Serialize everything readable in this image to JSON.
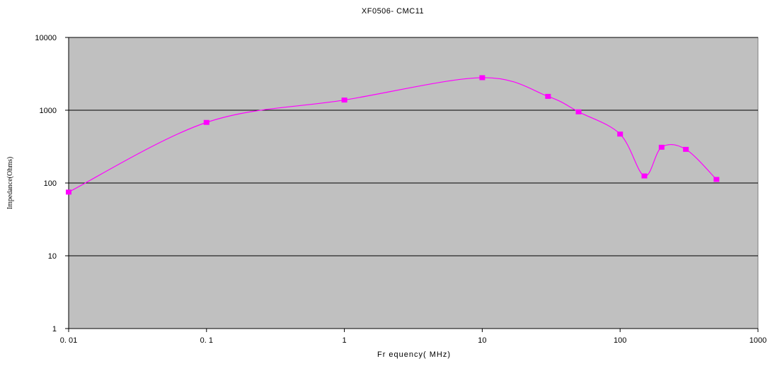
{
  "chart_data": {
    "type": "line",
    "title": "XF0506- CMC11",
    "xlabel": "Fr equency( MHz)",
    "ylabel": "Impedance(Ohms)",
    "x_scale": "log",
    "y_scale": "log",
    "xlim": [
      0.01,
      1000
    ],
    "ylim": [
      1,
      10000
    ],
    "x_tick_values": [
      0.01,
      0.1,
      1,
      10,
      100,
      1000
    ],
    "x_tick_labels": [
      "0. 01",
      "0. 1",
      "1",
      "10",
      "100",
      "1000"
    ],
    "y_tick_values": [
      1,
      10,
      100,
      1000,
      10000
    ],
    "y_tick_labels": [
      "1",
      "10",
      "100",
      "1000",
      "10000"
    ],
    "grid": "horizontal major lines",
    "legend": "none",
    "plot_background": "#c0c0c0",
    "series": [
      {
        "color": "#ff00ff",
        "x": [
          0.01,
          0.1,
          1,
          10,
          30,
          50,
          100,
          150,
          200,
          300,
          500
        ],
        "y": [
          75,
          680,
          1380,
          2800,
          1550,
          950,
          470,
          125,
          310,
          290,
          112
        ]
      }
    ]
  }
}
